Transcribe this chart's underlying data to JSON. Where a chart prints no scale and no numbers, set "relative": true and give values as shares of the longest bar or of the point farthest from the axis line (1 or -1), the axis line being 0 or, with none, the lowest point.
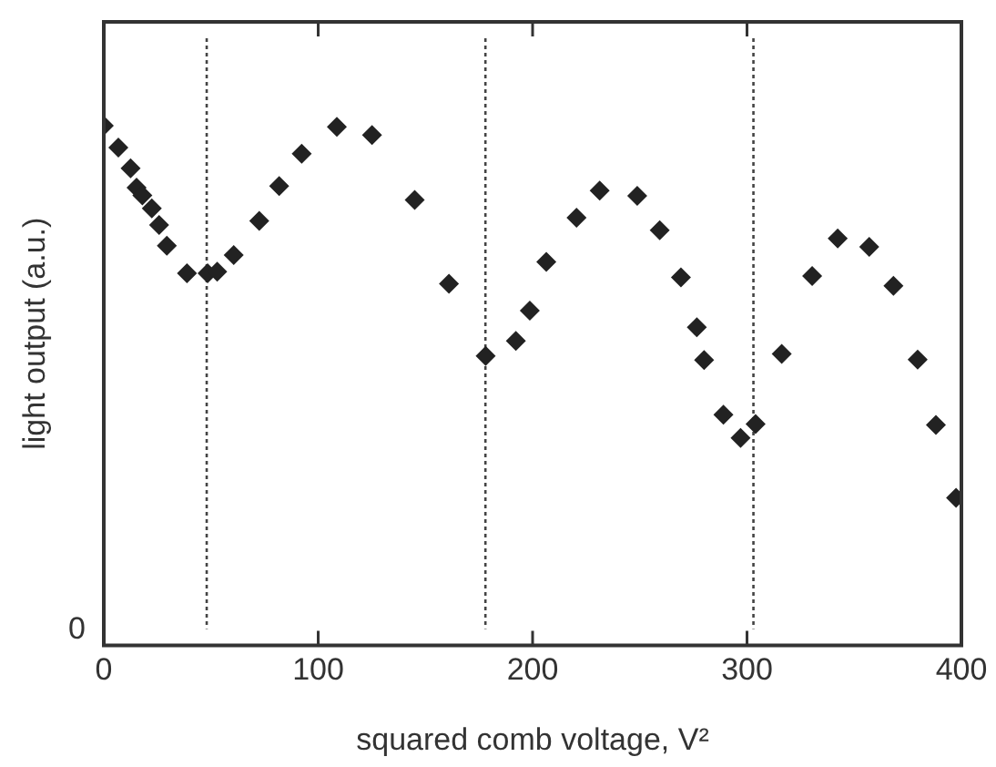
{
  "chart_data": {
    "type": "scatter",
    "xlabel": "squared comb voltage, V²",
    "ylabel": "light output (a.u.)",
    "relative": true,
    "marker": "diamond",
    "legend": false,
    "grid": false,
    "xlim": [
      0,
      400
    ],
    "xticks": [
      0,
      100,
      200,
      300,
      400
    ],
    "annotations": [
      "0"
    ],
    "ref_lines": [
      {
        "axis": "x",
        "value": 48,
        "color": "#444444",
        "line_style": "dotted"
      },
      {
        "axis": "x",
        "value": 178,
        "color": "#444444",
        "line_style": "dotted"
      },
      {
        "axis": "x",
        "value": 303,
        "color": "#444444",
        "line_style": "dotted"
      }
    ],
    "series": [
      {
        "color": "#222222",
        "x": [
          0,
          6.8,
          12.5,
          15.3,
          18,
          22.4,
          25.8,
          29.4,
          38.8,
          48.4,
          52.9,
          60.6,
          72.5,
          81.8,
          92.3,
          108.7,
          125.1,
          145,
          161,
          178.1,
          192.2,
          198.7,
          206.4,
          220.5,
          231.3,
          248.8,
          259.3,
          269.2,
          276.6,
          280,
          289,
          297,
          304,
          316.2,
          330.4,
          342.3,
          357,
          368.3,
          379.6,
          388.1,
          397.5
        ],
        "values": [
          1.0,
          0.958,
          0.918,
          0.881,
          0.866,
          0.841,
          0.809,
          0.769,
          0.716,
          0.716,
          0.719,
          0.751,
          0.817,
          0.884,
          0.946,
          0.998,
          0.982,
          0.857,
          0.696,
          0.557,
          0.586,
          0.644,
          0.738,
          0.823,
          0.875,
          0.865,
          0.799,
          0.708,
          0.612,
          0.549,
          0.444,
          0.399,
          0.426,
          0.561,
          0.711,
          0.783,
          0.767,
          0.692,
          0.55,
          0.424,
          0.284
        ]
      }
    ]
  }
}
